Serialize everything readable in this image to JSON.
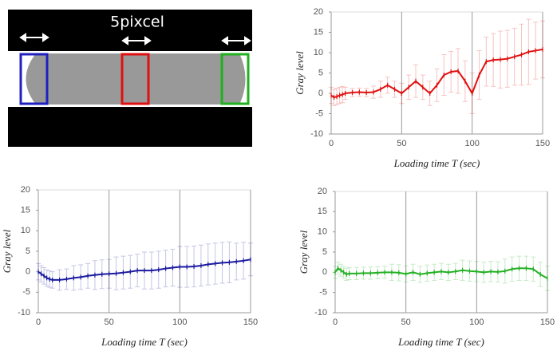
{
  "image_panel": {
    "label": "5pixcel"
  },
  "chart_data": [
    {
      "type": "line",
      "xlabel": "Loading time T (sec)",
      "ylabel": "Gray level",
      "x": [
        0,
        2,
        4,
        6,
        8,
        10,
        15,
        20,
        25,
        30,
        35,
        40,
        45,
        50,
        55,
        60,
        65,
        70,
        75,
        80,
        85,
        90,
        95,
        100,
        105,
        110,
        115,
        120,
        125,
        130,
        135,
        140,
        145,
        150
      ],
      "series": [
        {
          "color": "#e01010",
          "values": [
            -0.5,
            -1,
            -0.8,
            -0.5,
            -0.3,
            0,
            0.2,
            0.3,
            0.2,
            0.3,
            1,
            2,
            1,
            0,
            1.5,
            3,
            1.5,
            0,
            2,
            4.5,
            5.3,
            5.5,
            3,
            0,
            4.5,
            7.8,
            8.2,
            8.3,
            8.5,
            9,
            9.5,
            10.2,
            10.5,
            10.8
          ],
          "errors": [
            2,
            2,
            2,
            2,
            2,
            1.5,
            1,
            1,
            1,
            1.5,
            2,
            2,
            2,
            2.5,
            3,
            4,
            3,
            3,
            4,
            5,
            5,
            5.5,
            5,
            5,
            6,
            6,
            6.5,
            7,
            7,
            7,
            7.5,
            8,
            7,
            7
          ]
        }
      ],
      "xlim": [
        0,
        150
      ],
      "ylim": [
        -10,
        20
      ],
      "xticks": [
        0,
        50,
        100,
        150
      ],
      "yticks": [
        -10,
        -5,
        0,
        5,
        10,
        15,
        20
      ],
      "grid": true
    },
    {
      "type": "line",
      "xlabel": "Loading time T (sec)",
      "ylabel": "Gray level",
      "x": [
        0,
        2,
        4,
        6,
        8,
        10,
        15,
        20,
        25,
        30,
        35,
        40,
        45,
        50,
        55,
        60,
        65,
        70,
        75,
        80,
        85,
        90,
        95,
        100,
        105,
        110,
        115,
        120,
        125,
        130,
        135,
        140,
        145,
        150
      ],
      "series": [
        {
          "color": "#1a1aa0",
          "values": [
            0,
            -0.5,
            -1,
            -1.5,
            -1.8,
            -2,
            -2,
            -1.8,
            -1.5,
            -1.3,
            -1,
            -0.8,
            -0.6,
            -0.5,
            -0.4,
            -0.2,
            0,
            0.3,
            0.3,
            0.3,
            0.5,
            0.8,
            1,
            1.2,
            1.2,
            1.3,
            1.5,
            1.8,
            2,
            2.2,
            2.3,
            2.5,
            2.7,
            3
          ],
          "errors": [
            2,
            2,
            2,
            2,
            2,
            2,
            2.5,
            2.5,
            3,
            3,
            3,
            3.5,
            3.5,
            3.5,
            4,
            4,
            4,
            4,
            4.5,
            4.5,
            4.5,
            4.5,
            4.5,
            5,
            5,
            5,
            5,
            5,
            5,
            5,
            5,
            4.5,
            4.5,
            4
          ]
        }
      ],
      "xlim": [
        0,
        150
      ],
      "ylim": [
        -10,
        20
      ],
      "xticks": [
        0,
        50,
        100,
        150
      ],
      "yticks": [
        -10,
        -5,
        0,
        5,
        10,
        15,
        20
      ],
      "grid": true
    },
    {
      "type": "line",
      "xlabel": "Loading time T (sec)",
      "ylabel": "Gray level",
      "x": [
        0,
        2,
        4,
        6,
        8,
        10,
        15,
        20,
        25,
        30,
        35,
        40,
        45,
        50,
        55,
        60,
        65,
        70,
        75,
        80,
        85,
        90,
        95,
        100,
        105,
        110,
        115,
        120,
        125,
        130,
        135,
        140,
        145,
        150
      ],
      "series": [
        {
          "color": "#22b022",
          "values": [
            0,
            1,
            0.5,
            0,
            -0.5,
            -0.3,
            -0.3,
            -0.2,
            -0.2,
            -0.1,
            0,
            0,
            -0.1,
            -0.4,
            0,
            -0.5,
            -0.2,
            0,
            0.2,
            0,
            0.2,
            0.5,
            0.3,
            0.2,
            0,
            0.2,
            0.1,
            0.3,
            0.8,
            1,
            1,
            0.8,
            -0.5,
            -1.5
          ],
          "errors": [
            1.5,
            1.5,
            1.5,
            1.5,
            1.5,
            1.5,
            1.5,
            1.5,
            1.5,
            1.5,
            1.5,
            2,
            2,
            2,
            2,
            2,
            2,
            2,
            2,
            2,
            2,
            2.5,
            2.5,
            2.5,
            2.5,
            2.5,
            2.5,
            3,
            3,
            3,
            3,
            3,
            3,
            3
          ]
        }
      ],
      "xlim": [
        0,
        150
      ],
      "ylim": [
        -10,
        20
      ],
      "xticks": [
        0,
        50,
        100,
        150
      ],
      "yticks": [
        -10,
        -5,
        0,
        5,
        10,
        15,
        20
      ],
      "grid": true
    }
  ]
}
